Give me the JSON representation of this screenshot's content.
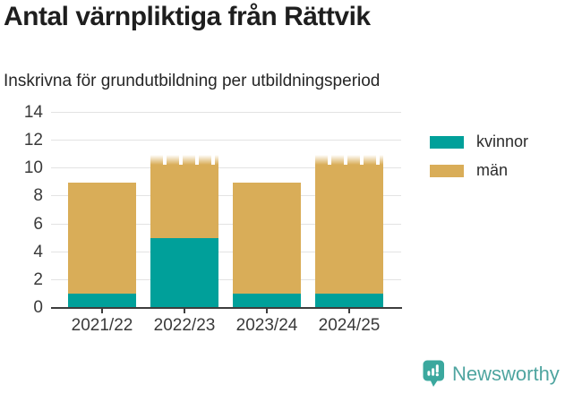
{
  "header": {
    "title": "Antal värnpliktiga från Rättvik",
    "subtitle": "Inskrivna för grundutbildning per utbildningsperiod"
  },
  "chart_data": {
    "type": "bar",
    "stacked": true,
    "title": "Antal värnpliktiga från Rättvik",
    "subtitle": "Inskrivna för grundutbildning per utbildningsperiod",
    "categories": [
      "2021/22",
      "2022/23",
      "2023/24",
      "2024/25"
    ],
    "series": [
      {
        "name": "kvinnor",
        "color": "#00a09a",
        "values": [
          1,
          5,
          1,
          1
        ]
      },
      {
        "name": "män",
        "color": "#d9ad58",
        "values": [
          8,
          6,
          8,
          10
        ]
      }
    ],
    "totals": [
      9,
      11,
      9,
      11
    ],
    "faded_top": [
      false,
      true,
      false,
      true
    ],
    "ylim": [
      0,
      14
    ],
    "yticks": [
      0,
      2,
      4,
      6,
      8,
      10,
      12,
      14
    ],
    "grid": "horizontal",
    "legend_position": "right-top",
    "xlabel": "",
    "ylabel": ""
  },
  "footer": {
    "brand": "Newsworthy"
  },
  "colors": {
    "kvinnor": "#00a09a",
    "man": "#d9ad58",
    "gridline": "#e3e3e3",
    "axis": "#3d3d3d",
    "brand": "#4fa5a0",
    "brand_icon": "#3ba89e"
  }
}
